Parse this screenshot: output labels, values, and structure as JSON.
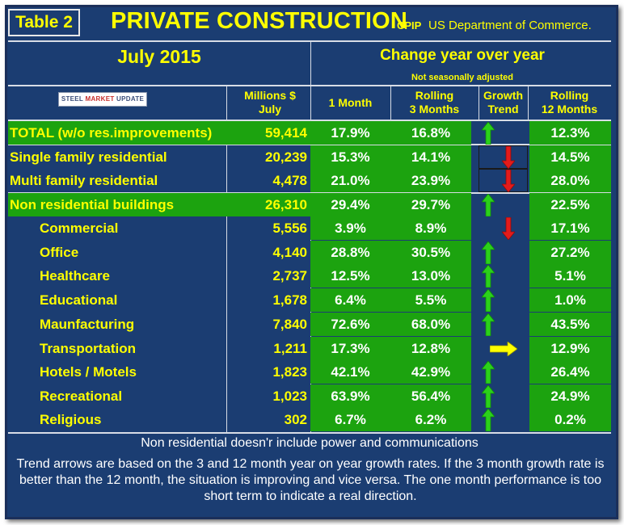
{
  "title": {
    "table_label": "Table 2",
    "main": "PRIVATE CONSTRUCTION",
    "abbrev": "CPIP",
    "source": "US Department of Commerce."
  },
  "period": "July 2015",
  "change_header": "Change year over year",
  "adjustment_note": "Not seasonally adjusted",
  "logo": {
    "text_a": "STEEL ",
    "text_b": "MARKET",
    "text_c": " UPDATE"
  },
  "columns": {
    "millions": "Millions $",
    "millions_sub": "July",
    "one_month": "1 Month",
    "rolling3": "Rolling",
    "rolling3_sub": "3 Months",
    "growth": "Growth",
    "growth_sub": "Trend",
    "rolling12": "Rolling",
    "rolling12_sub": "12 Months"
  },
  "rows": [
    {
      "label": "TOTAL (w/o res.improvements)",
      "value": "59,414",
      "m1": "17.9%",
      "m3": "16.8%",
      "trend": "up",
      "m12": "12.3%"
    },
    {
      "label": "Single family residential",
      "value": "20,239",
      "m1": "15.3%",
      "m3": "14.1%",
      "trend": "down",
      "m12": "14.5%"
    },
    {
      "label": "Multi family residential",
      "value": "4,478",
      "m1": "21.0%",
      "m3": "23.9%",
      "trend": "down",
      "m12": "28.0%"
    },
    {
      "label": "Non residential buildings",
      "value": "26,310",
      "m1": "29.4%",
      "m3": "29.7%",
      "trend": "up",
      "m12": "22.5%"
    },
    {
      "label": "Commercial",
      "value": "5,556",
      "m1": "3.9%",
      "m3": "8.9%",
      "trend": "down",
      "m12": "17.1%"
    },
    {
      "label": "Office",
      "value": "4,140",
      "m1": "28.8%",
      "m3": "30.5%",
      "trend": "up",
      "m12": "27.2%"
    },
    {
      "label": "Healthcare",
      "value": "2,737",
      "m1": "12.5%",
      "m3": "13.0%",
      "trend": "up",
      "m12": "5.1%"
    },
    {
      "label": "Educational",
      "value": "1,678",
      "m1": "6.4%",
      "m3": "5.5%",
      "trend": "up",
      "m12": "1.0%"
    },
    {
      "label": "Maunfacturing",
      "value": "7,840",
      "m1": "72.6%",
      "m3": "68.0%",
      "trend": "up",
      "m12": "43.5%"
    },
    {
      "label": "Transportation",
      "value": "1,211",
      "m1": "17.3%",
      "m3": "12.8%",
      "trend": "flat",
      "m12": "12.9%"
    },
    {
      "label": "Hotels / Motels",
      "value": "1,823",
      "m1": "42.1%",
      "m3": "42.9%",
      "trend": "up",
      "m12": "26.4%"
    },
    {
      "label": "Recreational",
      "value": "1,023",
      "m1": "63.9%",
      "m3": "56.4%",
      "trend": "up",
      "m12": "24.9%"
    },
    {
      "label": "Religious",
      "value": "302",
      "m1": "6.7%",
      "m3": "6.2%",
      "trend": "up",
      "m12": "0.2%"
    }
  ],
  "footnote": "Non residential doesn'r include power and communications",
  "explanation": "Trend arrows are based on the 3 and 12 month year on year growth rates. If the 3 month growth rate is better than the 12 month, the situation is improving and vice versa. The one month performance is too short term to indicate a real direction.",
  "colors": {
    "background": "#1b3d72",
    "highlight": "#ffff00",
    "positive": "#1ca30f",
    "negative": "#e31b1b",
    "neutral": "#ffff00"
  }
}
